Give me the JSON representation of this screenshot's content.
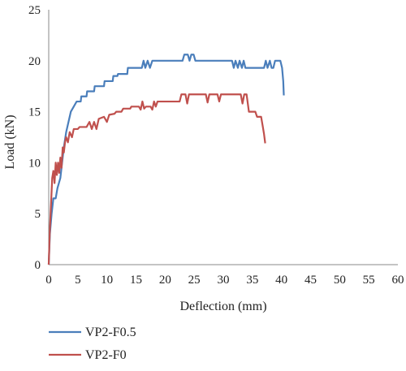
{
  "chart_data": {
    "type": "line",
    "title": "",
    "xlabel": "Deflection (mm)",
    "ylabel": "Load (kN)",
    "xlim": [
      0,
      60
    ],
    "ylim": [
      0,
      25
    ],
    "xticks": [
      0,
      5,
      10,
      15,
      20,
      25,
      30,
      35,
      40,
      45,
      50,
      55,
      60
    ],
    "yticks": [
      0,
      5,
      10,
      15,
      20,
      25
    ],
    "grid": false,
    "legend_position": "bottom-left",
    "series": [
      {
        "name": "VP2-F0.5",
        "color": "#4a7ebb",
        "points": [
          [
            0.0,
            0.0
          ],
          [
            0.2,
            3.0
          ],
          [
            0.5,
            5.0
          ],
          [
            0.8,
            6.5
          ],
          [
            1.2,
            6.5
          ],
          [
            1.5,
            7.5
          ],
          [
            2.0,
            8.5
          ],
          [
            2.3,
            10.0
          ],
          [
            2.6,
            11.5
          ],
          [
            3.0,
            13.0
          ],
          [
            3.4,
            14.0
          ],
          [
            3.8,
            15.0
          ],
          [
            4.3,
            15.5
          ],
          [
            4.8,
            16.0
          ],
          [
            5.5,
            16.0
          ],
          [
            5.6,
            16.5
          ],
          [
            6.5,
            16.5
          ],
          [
            6.6,
            17.0
          ],
          [
            7.8,
            17.0
          ],
          [
            7.9,
            17.5
          ],
          [
            9.5,
            17.5
          ],
          [
            9.6,
            18.0
          ],
          [
            11.0,
            18.0
          ],
          [
            11.1,
            18.5
          ],
          [
            11.8,
            18.5
          ],
          [
            11.9,
            18.7
          ],
          [
            13.5,
            18.7
          ],
          [
            13.6,
            19.3
          ],
          [
            16.0,
            19.3
          ],
          [
            16.3,
            20.0
          ],
          [
            16.6,
            19.3
          ],
          [
            17.0,
            20.0
          ],
          [
            17.4,
            19.3
          ],
          [
            17.8,
            20.0
          ],
          [
            23.0,
            20.0
          ],
          [
            23.3,
            20.6
          ],
          [
            23.9,
            20.6
          ],
          [
            24.2,
            20.0
          ],
          [
            24.5,
            20.6
          ],
          [
            24.9,
            20.6
          ],
          [
            25.2,
            20.0
          ],
          [
            31.5,
            20.0
          ],
          [
            31.8,
            19.3
          ],
          [
            32.1,
            20.0
          ],
          [
            32.5,
            19.3
          ],
          [
            32.8,
            20.0
          ],
          [
            33.2,
            19.3
          ],
          [
            33.5,
            20.0
          ],
          [
            33.8,
            19.3
          ],
          [
            37.0,
            19.3
          ],
          [
            37.3,
            20.0
          ],
          [
            37.6,
            19.3
          ],
          [
            38.0,
            20.0
          ],
          [
            38.3,
            19.3
          ],
          [
            38.6,
            19.3
          ],
          [
            38.9,
            20.0
          ],
          [
            39.8,
            20.0
          ],
          [
            40.1,
            19.3
          ],
          [
            40.3,
            18.0
          ],
          [
            40.4,
            16.6
          ]
        ]
      },
      {
        "name": "VP2-F0",
        "color": "#c0504d",
        "points": [
          [
            0.0,
            0.0
          ],
          [
            0.2,
            3.5
          ],
          [
            0.4,
            6.0
          ],
          [
            0.6,
            8.5
          ],
          [
            0.8,
            9.2
          ],
          [
            1.0,
            8.0
          ],
          [
            1.2,
            10.0
          ],
          [
            1.4,
            8.8
          ],
          [
            1.6,
            10.0
          ],
          [
            1.8,
            9.0
          ],
          [
            2.0,
            10.5
          ],
          [
            2.2,
            9.5
          ],
          [
            2.4,
            11.5
          ],
          [
            2.6,
            11.0
          ],
          [
            2.8,
            12.0
          ],
          [
            3.0,
            12.5
          ],
          [
            3.3,
            12.0
          ],
          [
            3.6,
            13.0
          ],
          [
            4.0,
            12.5
          ],
          [
            4.3,
            13.3
          ],
          [
            5.0,
            13.3
          ],
          [
            5.3,
            13.5
          ],
          [
            6.5,
            13.5
          ],
          [
            7.0,
            14.0
          ],
          [
            7.4,
            13.3
          ],
          [
            7.8,
            14.0
          ],
          [
            8.2,
            13.3
          ],
          [
            8.6,
            14.3
          ],
          [
            9.5,
            14.5
          ],
          [
            10.0,
            14.0
          ],
          [
            10.4,
            14.7
          ],
          [
            11.3,
            14.8
          ],
          [
            11.6,
            15.0
          ],
          [
            12.5,
            15.0
          ],
          [
            12.8,
            15.3
          ],
          [
            14.0,
            15.3
          ],
          [
            14.2,
            15.5
          ],
          [
            15.5,
            15.5
          ],
          [
            15.8,
            15.2
          ],
          [
            16.1,
            16.0
          ],
          [
            16.4,
            15.3
          ],
          [
            16.7,
            15.5
          ],
          [
            17.5,
            15.5
          ],
          [
            17.8,
            15.2
          ],
          [
            18.1,
            16.0
          ],
          [
            18.4,
            15.5
          ],
          [
            18.7,
            16.0
          ],
          [
            22.5,
            16.0
          ],
          [
            22.8,
            16.7
          ],
          [
            23.5,
            16.7
          ],
          [
            23.8,
            15.8
          ],
          [
            24.1,
            16.7
          ],
          [
            27.0,
            16.7
          ],
          [
            27.3,
            15.9
          ],
          [
            27.6,
            16.7
          ],
          [
            29.0,
            16.7
          ],
          [
            29.3,
            16.0
          ],
          [
            29.6,
            16.7
          ],
          [
            33.0,
            16.7
          ],
          [
            33.3,
            15.8
          ],
          [
            33.6,
            16.7
          ],
          [
            34.0,
            16.7
          ],
          [
            34.4,
            15.0
          ],
          [
            35.5,
            15.0
          ],
          [
            35.8,
            14.5
          ],
          [
            36.5,
            14.5
          ],
          [
            36.8,
            13.5
          ],
          [
            37.0,
            12.8
          ],
          [
            37.2,
            11.9
          ]
        ]
      }
    ]
  }
}
